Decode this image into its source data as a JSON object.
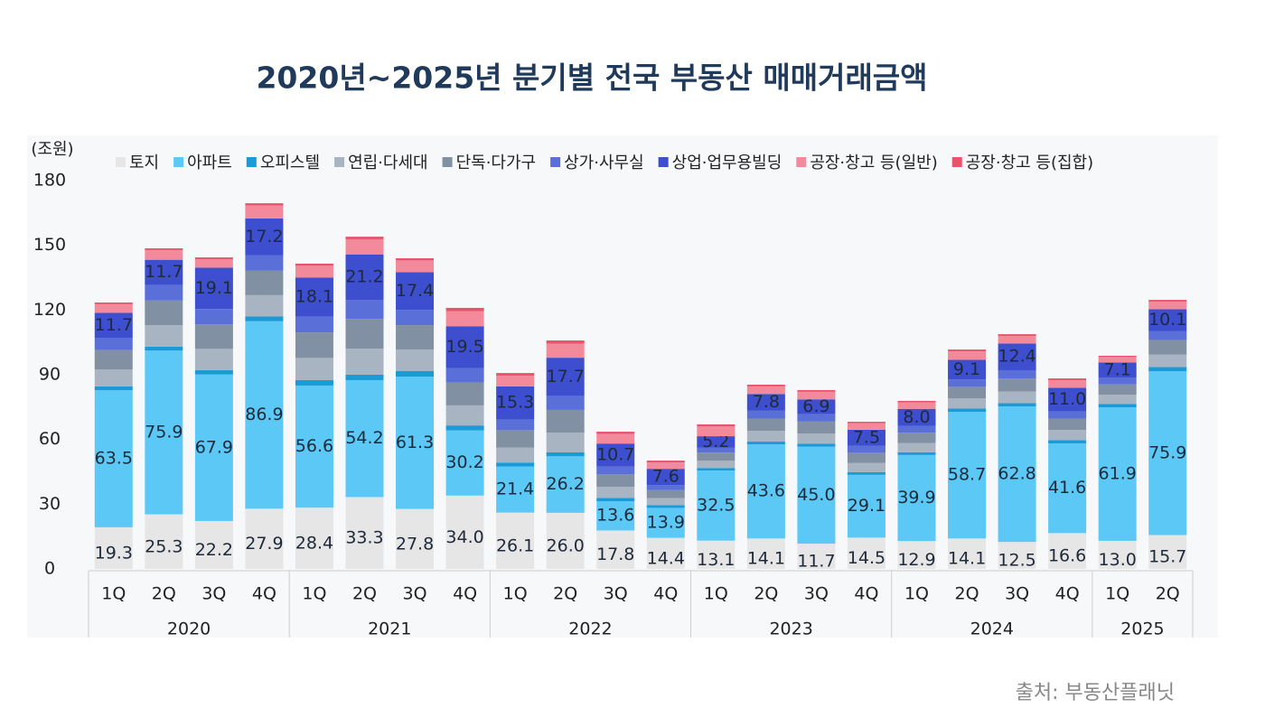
{
  "chart_data": {
    "type": "stacked_bar",
    "title": "2020년~2025년 분기별 전국 부동산 매매거래금액",
    "y_label": "(조원)",
    "source": "출처: 부동산플래닛",
    "groups": [
      {
        "name": "2020",
        "categories": [
          "1Q",
          "2Q",
          "3Q",
          "4Q"
        ]
      },
      {
        "name": "2021",
        "categories": [
          "1Q",
          "2Q",
          "3Q",
          "4Q"
        ]
      },
      {
        "name": "2022",
        "categories": [
          "1Q",
          "2Q",
          "3Q",
          "4Q"
        ]
      },
      {
        "name": "2023",
        "categories": [
          "1Q",
          "2Q",
          "3Q",
          "4Q"
        ]
      },
      {
        "name": "2024",
        "categories": [
          "1Q",
          "2Q",
          "3Q",
          "4Q"
        ]
      },
      {
        "name": "2025",
        "categories": [
          "1Q",
          "2Q"
        ]
      }
    ],
    "ylim": [
      0,
      180
    ],
    "yticks": [
      0,
      30,
      60,
      90,
      120,
      150,
      180
    ],
    "grid": false,
    "series": [
      {
        "name": "토지",
        "color": "#e6e6e6",
        "values": [
          19.3,
          25.3,
          22.2,
          27.9,
          28.4,
          33.3,
          27.8,
          34.0,
          26.1,
          26.0,
          17.8,
          14.4,
          13.1,
          14.1,
          11.7,
          14.5,
          12.9,
          14.1,
          12.5,
          16.6,
          13.0,
          15.7
        ],
        "value_labels": [
          "19.3",
          "25.3",
          "22.2",
          "27.9",
          "28.4",
          "33.3",
          "27.8",
          "34.0",
          "26.1",
          "26.0",
          "17.8",
          "14.4",
          "13.1",
          "14.1",
          "11.7",
          "14.5",
          "12.9",
          "14.1",
          "12.5",
          "16.6",
          "13.0",
          "15.7"
        ]
      },
      {
        "name": "아파트",
        "color": "#5bc8f5",
        "values": [
          63.5,
          75.9,
          67.9,
          86.9,
          56.6,
          54.2,
          61.3,
          30.2,
          21.4,
          26.2,
          13.6,
          13.9,
          32.5,
          43.6,
          45.0,
          29.1,
          39.9,
          58.7,
          62.8,
          41.6,
          61.9,
          75.9
        ],
        "value_labels": [
          "63.5",
          "75.9",
          "67.9",
          "86.9",
          "56.6",
          "54.2",
          "61.3",
          "30.2",
          "21.4",
          "26.2",
          "13.6",
          "13.9",
          "32.5",
          "43.6",
          "45.0",
          "29.1",
          "39.9",
          "58.7",
          "62.8",
          "41.6",
          "61.9",
          "75.9"
        ]
      },
      {
        "name": "오피스텔",
        "color": "#1a9ad6",
        "values": [
          1.8,
          1.8,
          2.0,
          2.2,
          2.5,
          2.5,
          2.7,
          2.3,
          1.8,
          1.8,
          1.5,
          1.2,
          1.2,
          1.3,
          1.3,
          1.2,
          1.3,
          1.5,
          1.5,
          1.5,
          1.6,
          2.0
        ]
      },
      {
        "name": "연립·다세대",
        "color": "#a9b4c2",
        "values": [
          7.8,
          10.0,
          9.9,
          9.9,
          10.3,
          12.1,
          9.9,
          9.3,
          7.0,
          9.2,
          5.1,
          3.3,
          3.3,
          5.0,
          4.8,
          4.3,
          4.2,
          4.7,
          5.4,
          4.7,
          4.2,
          5.8
        ]
      },
      {
        "name": "단독·다가구",
        "color": "#8290a3",
        "values": [
          9.0,
          11.4,
          11.4,
          11.3,
          11.8,
          13.8,
          11.3,
          10.6,
          8.0,
          10.5,
          5.8,
          3.7,
          3.8,
          5.7,
          5.5,
          4.9,
          4.8,
          5.4,
          6.1,
          5.3,
          4.8,
          6.7
        ]
      },
      {
        "name": "상가·사무실",
        "color": "#5a6fd8",
        "values": [
          5.6,
          7.2,
          7.1,
          7.1,
          7.3,
          8.7,
          7.1,
          6.6,
          5.0,
          6.5,
          3.6,
          2.3,
          2.4,
          3.6,
          3.4,
          3.0,
          3.1,
          3.4,
          3.8,
          3.3,
          3.1,
          4.2
        ]
      },
      {
        "name": "상업·업무용빌딩",
        "color": "#3d4fcf",
        "values": [
          11.7,
          11.7,
          19.1,
          17.2,
          18.1,
          21.2,
          17.4,
          19.5,
          15.3,
          17.7,
          10.7,
          7.6,
          5.2,
          7.8,
          6.9,
          7.5,
          8.0,
          9.1,
          12.4,
          11.0,
          7.1,
          10.1
        ],
        "value_labels": [
          "11.7",
          "11.7",
          "19.1",
          "17.2",
          "18.1",
          "21.2",
          "17.4",
          "19.5",
          "15.3",
          "17.7",
          "10.7",
          "7.6",
          "5.2",
          "7.8",
          "6.9",
          "7.5",
          "8.0",
          "9.1",
          "12.4",
          "11.0",
          "7.1",
          "10.1"
        ]
      },
      {
        "name": "공장·창고 등(일반)",
        "color": "#f28a9c",
        "values": [
          4.0,
          4.5,
          4.0,
          6.0,
          5.5,
          7.0,
          5.5,
          7.0,
          5.0,
          6.5,
          4.5,
          3.0,
          4.5,
          3.5,
          3.5,
          3.0,
          3.0,
          4.0,
          3.5,
          3.5,
          2.5,
          3.5
        ]
      },
      {
        "name": "공장·창고 등(집합)",
        "color": "#e8546a",
        "values": [
          0.8,
          0.8,
          0.8,
          1.0,
          1.0,
          1.2,
          1.0,
          1.5,
          1.2,
          1.5,
          1.0,
          0.8,
          1.0,
          0.8,
          0.8,
          0.7,
          0.7,
          0.8,
          0.8,
          0.8,
          0.6,
          0.8
        ]
      }
    ]
  }
}
